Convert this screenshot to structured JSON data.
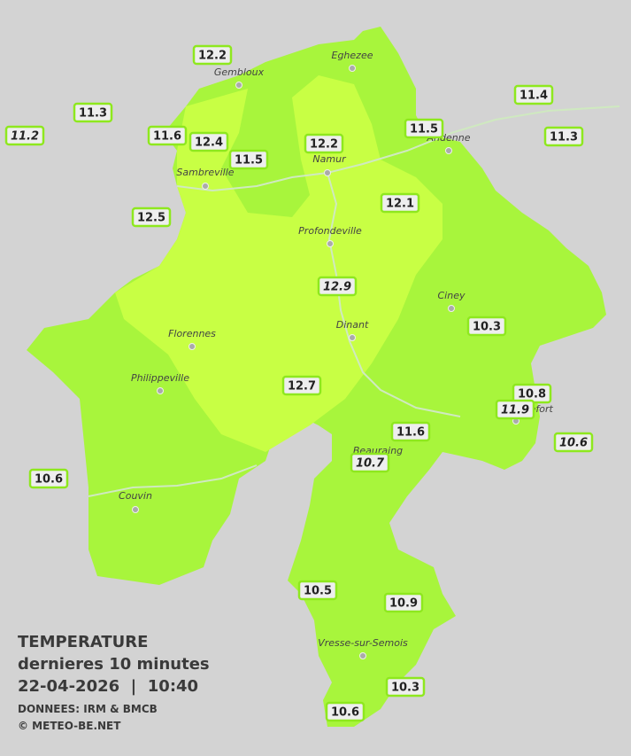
{
  "cities": [
    "Eghezee",
    "Gembloux",
    "Andenne",
    "Namur",
    "Sambreville",
    "Profondeville",
    "Ciney",
    "Florennes",
    "Dinant",
    "Philippeville",
    "Rochefort",
    "Beauraing",
    "Couvin",
    "Vresse-sur-Semois"
  ],
  "stations": [
    {
      "value": 12.2
    },
    {
      "value": 11.3
    },
    {
      "value": 11.2,
      "style": "italic"
    },
    {
      "value": 11.6
    },
    {
      "value": 12.4
    },
    {
      "value": 11.5
    },
    {
      "value": 12.2
    },
    {
      "value": 11.5
    },
    {
      "value": 11.4
    },
    {
      "value": 11.3
    },
    {
      "value": 12.5
    },
    {
      "value": 12.1
    },
    {
      "value": 12.9,
      "style": "italic"
    },
    {
      "value": 10.3
    },
    {
      "value": 10.8
    },
    {
      "value": 11.9,
      "style": "italic"
    },
    {
      "value": 10.6,
      "style": "italic"
    },
    {
      "value": 12.7
    },
    {
      "value": 11.6
    },
    {
      "value": 10.7,
      "style": "italic"
    },
    {
      "value": 10.6
    },
    {
      "value": 10.5
    },
    {
      "value": 10.9
    },
    {
      "value": 10.3
    },
    {
      "value": 10.6
    }
  ],
  "legend": {
    "title": "TEMPERATURE",
    "subtitle": "dernieres 10 minutes",
    "datetime": "22-04-2026  |  10:40",
    "source": "DONNEES: IRM & BMCB",
    "copyright": "© METEO-BE.NET"
  }
}
